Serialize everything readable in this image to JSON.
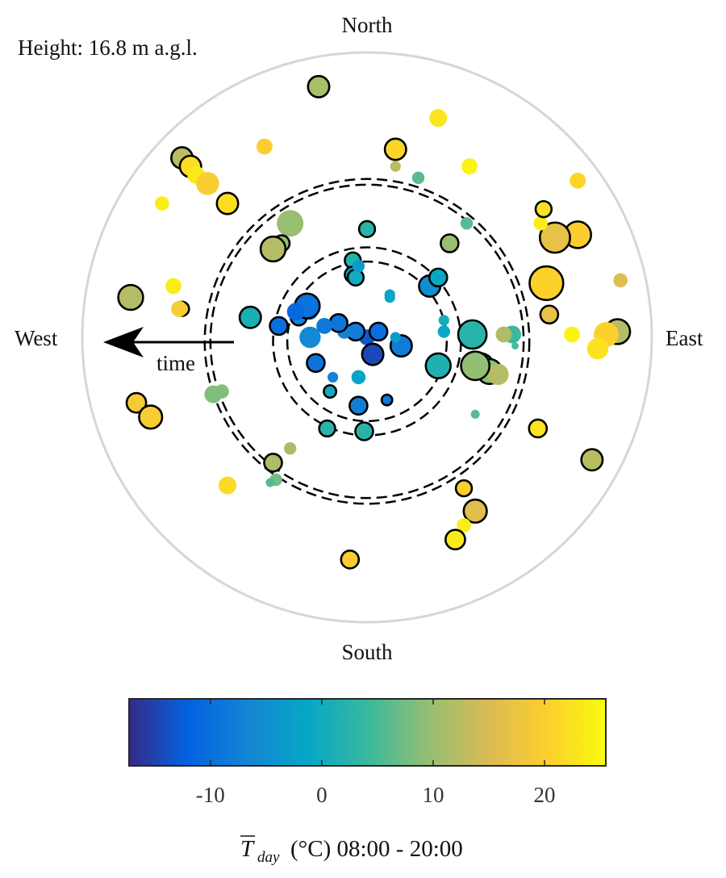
{
  "chart_data": {
    "type": "scatter",
    "coordinate_system": "polar (daily points; hidden radial axis, direction of time indicated by arrow)",
    "height_label": "Height: 16.8 m a.g.l.",
    "direction_labels": {
      "north": "North",
      "south": "South",
      "east": "East",
      "west": "West"
    },
    "time_arrow_label": "time",
    "colorbar": {
      "label_prefix": "T",
      "label_subscript": "day",
      "label_suffix": "(°C) 08:00 - 20:00",
      "ticks": [
        "-10",
        "0",
        "10",
        "20"
      ],
      "tick_values": [
        -10,
        0,
        10,
        20
      ],
      "range": [
        -17.3,
        25.5
      ],
      "colormap": [
        "#352a87",
        "#0363e1",
        "#1485d4",
        "#06a7c6",
        "#38b99e",
        "#92bf73",
        "#d9ba56",
        "#fcce2e",
        "#f9fb0e"
      ]
    },
    "dashed_circles_radius_fraction": [
      0.28,
      0.33,
      0.55,
      0.57
    ],
    "points": [
      {
        "x": 0.0,
        "y": 0.0,
        "t": -13.0,
        "size": 0.9,
        "outlined": false
      },
      {
        "x": -0.04,
        "y": 0.02,
        "t": -8.0,
        "size": 1.0,
        "outlined": true
      },
      {
        "x": 0.04,
        "y": 0.02,
        "t": -10.0,
        "size": 1.0,
        "outlined": true
      },
      {
        "x": 0.02,
        "y": -0.06,
        "t": -14.5,
        "size": 1.2,
        "outlined": true
      },
      {
        "x": 0.12,
        "y": -0.03,
        "t": -8.0,
        "size": 1.2,
        "outlined": true
      },
      {
        "x": 0.1,
        "y": 0.0,
        "t": -3.0,
        "size": 0.6,
        "outlined": false
      },
      {
        "x": 0.08,
        "y": 0.15,
        "t": -1.0,
        "size": 0.6,
        "outlined": false
      },
      {
        "x": -0.08,
        "y": 0.02,
        "t": -7.0,
        "size": 0.8,
        "outlined": false
      },
      {
        "x": -0.1,
        "y": 0.05,
        "t": -9.0,
        "size": 1.0,
        "outlined": true
      },
      {
        "x": -0.15,
        "y": 0.04,
        "t": -8.5,
        "size": 0.9,
        "outlined": false
      },
      {
        "x": -0.2,
        "y": 0.0,
        "t": -6.0,
        "size": 1.2,
        "outlined": false
      },
      {
        "x": -0.18,
        "y": -0.09,
        "t": -9.5,
        "size": 1.0,
        "outlined": true
      },
      {
        "x": -0.24,
        "y": 0.07,
        "t": -7.0,
        "size": 0.9,
        "outlined": true
      },
      {
        "x": -0.2,
        "y": 0.09,
        "t": -8.0,
        "size": 0.9,
        "outlined": false
      },
      {
        "x": -0.21,
        "y": 0.11,
        "t": -9.5,
        "size": 1.4,
        "outlined": true
      },
      {
        "x": -0.25,
        "y": 0.09,
        "t": -11.0,
        "size": 1.0,
        "outlined": false
      },
      {
        "x": -0.31,
        "y": 0.04,
        "t": -10.0,
        "size": 1.0,
        "outlined": true
      },
      {
        "x": -0.12,
        "y": -0.14,
        "t": -7.0,
        "size": 0.6,
        "outlined": false
      },
      {
        "x": -0.03,
        "y": -0.14,
        "t": -1.5,
        "size": 0.8,
        "outlined": false
      },
      {
        "x": -0.03,
        "y": -0.24,
        "t": -7.5,
        "size": 1.0,
        "outlined": true
      },
      {
        "x": 0.07,
        "y": -0.22,
        "t": -8.5,
        "size": 0.6,
        "outlined": true
      },
      {
        "x": -0.13,
        "y": -0.19,
        "t": 0.0,
        "size": 0.7,
        "outlined": true
      },
      {
        "x": 0.08,
        "y": 0.14,
        "t": -1.5,
        "size": 0.6,
        "outlined": false
      },
      {
        "x": -0.05,
        "y": 0.27,
        "t": 2.0,
        "size": 0.9,
        "outlined": true
      },
      {
        "x": -0.05,
        "y": 0.22,
        "t": -1.0,
        "size": 0.9,
        "outlined": true
      },
      {
        "x": -0.04,
        "y": 0.21,
        "t": 0.0,
        "size": 0.9,
        "outlined": true
      },
      {
        "x": -0.03,
        "y": 0.25,
        "t": -3.0,
        "size": 0.7,
        "outlined": false
      },
      {
        "x": 0.22,
        "y": 0.18,
        "t": -5.0,
        "size": 1.2,
        "outlined": true
      },
      {
        "x": 0.25,
        "y": 0.21,
        "t": -1.0,
        "size": 1.0,
        "outlined": true
      },
      {
        "x": 0.27,
        "y": 0.06,
        "t": 0.5,
        "size": 0.6,
        "outlined": false
      },
      {
        "x": 0.27,
        "y": 0.02,
        "t": -1.0,
        "size": 0.7,
        "outlined": false
      },
      {
        "x": 0.25,
        "y": -0.1,
        "t": 1.5,
        "size": 1.4,
        "outlined": true
      },
      {
        "x": 0.37,
        "y": 0.01,
        "t": 2.5,
        "size": 1.6,
        "outlined": true
      },
      {
        "x": -0.41,
        "y": 0.07,
        "t": 1.0,
        "size": 1.2,
        "outlined": true
      },
      {
        "x": 0.0,
        "y": 0.38,
        "t": 2.5,
        "size": 0.9,
        "outlined": true
      },
      {
        "x": -0.01,
        "y": -0.33,
        "t": 2.5,
        "size": 1.0,
        "outlined": true
      },
      {
        "x": -0.14,
        "y": -0.32,
        "t": 2.5,
        "size": 0.9,
        "outlined": true
      },
      {
        "x": 0.4,
        "y": -0.1,
        "t": 6.5,
        "size": 1.4,
        "outlined": true
      },
      {
        "x": 0.43,
        "y": -0.12,
        "t": 9.0,
        "size": 1.4,
        "outlined": true
      },
      {
        "x": 0.51,
        "y": 0.01,
        "t": 4.5,
        "size": 1.0,
        "outlined": false
      },
      {
        "x": 0.52,
        "y": -0.03,
        "t": 5.0,
        "size": 0.4,
        "outlined": false
      },
      {
        "x": 0.48,
        "y": 0.01,
        "t": 11.5,
        "size": 0.9,
        "outlined": false
      },
      {
        "x": 0.46,
        "y": -0.13,
        "t": 12.0,
        "size": 1.2,
        "outlined": false
      },
      {
        "x": 0.38,
        "y": -0.1,
        "t": 9.5,
        "size": 1.6,
        "outlined": true
      },
      {
        "x": 0.38,
        "y": -0.27,
        "t": 6.0,
        "size": 0.5,
        "outlined": false
      },
      {
        "x": 0.29,
        "y": 0.33,
        "t": 10.0,
        "size": 1.0,
        "outlined": true
      },
      {
        "x": 0.35,
        "y": 0.4,
        "t": 6.0,
        "size": 0.7,
        "outlined": false
      },
      {
        "x": 0.18,
        "y": 0.56,
        "t": 6.0,
        "size": 0.7,
        "outlined": false
      },
      {
        "x": 0.1,
        "y": 0.6,
        "t": 12.5,
        "size": 0.6,
        "outlined": false
      },
      {
        "x": -0.27,
        "y": 0.4,
        "t": 10.0,
        "size": 1.5,
        "outlined": false
      },
      {
        "x": -0.3,
        "y": 0.33,
        "t": 9.5,
        "size": 0.9,
        "outlined": true
      },
      {
        "x": -0.33,
        "y": 0.31,
        "t": 12.0,
        "size": 1.4,
        "outlined": true
      },
      {
        "x": -0.51,
        "y": -0.19,
        "t": 8.5,
        "size": 0.8,
        "outlined": false
      },
      {
        "x": -0.54,
        "y": -0.2,
        "t": 8.5,
        "size": 1.0,
        "outlined": false
      },
      {
        "x": -0.33,
        "y": -0.44,
        "t": 11.5,
        "size": 1.0,
        "outlined": true
      },
      {
        "x": -0.27,
        "y": -0.39,
        "t": 11.0,
        "size": 0.7,
        "outlined": false
      },
      {
        "x": -0.32,
        "y": -0.5,
        "t": 7.5,
        "size": 0.7,
        "outlined": false
      },
      {
        "x": -0.34,
        "y": -0.51,
        "t": 6.0,
        "size": 0.5,
        "outlined": false
      },
      {
        "x": -0.17,
        "y": 0.88,
        "t": 11.0,
        "size": 1.2,
        "outlined": true
      },
      {
        "x": 0.1,
        "y": 0.66,
        "t": 21.0,
        "size": 1.2,
        "outlined": true
      },
      {
        "x": -0.36,
        "y": 0.67,
        "t": 20.0,
        "size": 0.9,
        "outlined": false
      },
      {
        "x": 0.25,
        "y": 0.77,
        "t": 23.0,
        "size": 1.0,
        "outlined": false
      },
      {
        "x": 0.36,
        "y": 0.6,
        "t": 24.5,
        "size": 0.9,
        "outlined": false
      },
      {
        "x": -0.65,
        "y": 0.63,
        "t": 12.5,
        "size": 1.2,
        "outlined": true
      },
      {
        "x": -0.62,
        "y": 0.6,
        "t": 22.0,
        "size": 1.2,
        "outlined": true
      },
      {
        "x": -0.6,
        "y": 0.57,
        "t": 23.5,
        "size": 1.0,
        "outlined": false
      },
      {
        "x": -0.56,
        "y": 0.54,
        "t": 19.5,
        "size": 1.3,
        "outlined": false
      },
      {
        "x": -0.49,
        "y": 0.47,
        "t": 22.0,
        "size": 1.2,
        "outlined": true
      },
      {
        "x": -0.72,
        "y": 0.47,
        "t": 24.0,
        "size": 0.8,
        "outlined": false
      },
      {
        "x": -0.83,
        "y": 0.14,
        "t": 12.0,
        "size": 1.4,
        "outlined": true
      },
      {
        "x": -0.68,
        "y": 0.18,
        "t": 24.0,
        "size": 0.9,
        "outlined": false
      },
      {
        "x": -0.65,
        "y": 0.1,
        "t": 20.0,
        "size": 0.8,
        "outlined": true
      },
      {
        "x": -0.66,
        "y": 0.1,
        "t": 19.5,
        "size": 0.9,
        "outlined": false
      },
      {
        "x": -0.81,
        "y": -0.23,
        "t": 19.0,
        "size": 1.1,
        "outlined": true
      },
      {
        "x": -0.76,
        "y": -0.28,
        "t": 19.5,
        "size": 1.3,
        "outlined": true
      },
      {
        "x": -0.49,
        "y": -0.52,
        "t": 21.5,
        "size": 1.0,
        "outlined": false
      },
      {
        "x": -0.06,
        "y": -0.78,
        "t": 20.0,
        "size": 1.0,
        "outlined": true
      },
      {
        "x": 0.34,
        "y": -0.53,
        "t": 20.0,
        "size": 0.9,
        "outlined": true
      },
      {
        "x": 0.38,
        "y": -0.61,
        "t": 16.0,
        "size": 1.3,
        "outlined": true
      },
      {
        "x": 0.34,
        "y": -0.66,
        "t": 24.0,
        "size": 0.8,
        "outlined": false
      },
      {
        "x": 0.31,
        "y": -0.71,
        "t": 23.5,
        "size": 1.1,
        "outlined": true
      },
      {
        "x": 0.6,
        "y": -0.32,
        "t": 23.0,
        "size": 1.0,
        "outlined": true
      },
      {
        "x": 0.79,
        "y": -0.43,
        "t": 12.5,
        "size": 1.2,
        "outlined": true
      },
      {
        "x": 0.88,
        "y": 0.02,
        "t": 12.0,
        "size": 1.4,
        "outlined": true
      },
      {
        "x": 0.84,
        "y": 0.01,
        "t": 20.5,
        "size": 1.4,
        "outlined": false
      },
      {
        "x": 0.81,
        "y": -0.04,
        "t": 22.5,
        "size": 1.2,
        "outlined": false
      },
      {
        "x": 0.72,
        "y": 0.01,
        "t": 24.5,
        "size": 0.9,
        "outlined": false
      },
      {
        "x": 0.64,
        "y": 0.08,
        "t": 17.0,
        "size": 1.0,
        "outlined": true
      },
      {
        "x": 0.63,
        "y": 0.19,
        "t": 20.5,
        "size": 1.9,
        "outlined": true
      },
      {
        "x": 0.74,
        "y": 0.36,
        "t": 20.0,
        "size": 1.5,
        "outlined": true
      },
      {
        "x": 0.66,
        "y": 0.35,
        "t": 17.0,
        "size": 1.7,
        "outlined": true
      },
      {
        "x": 0.61,
        "y": 0.4,
        "t": 24.0,
        "size": 0.8,
        "outlined": false
      },
      {
        "x": 0.62,
        "y": 0.45,
        "t": 22.5,
        "size": 0.9,
        "outlined": true
      },
      {
        "x": 0.74,
        "y": 0.55,
        "t": 21.0,
        "size": 0.9,
        "outlined": false
      },
      {
        "x": 0.89,
        "y": 0.2,
        "t": 15.5,
        "size": 0.8,
        "outlined": false
      }
    ]
  }
}
